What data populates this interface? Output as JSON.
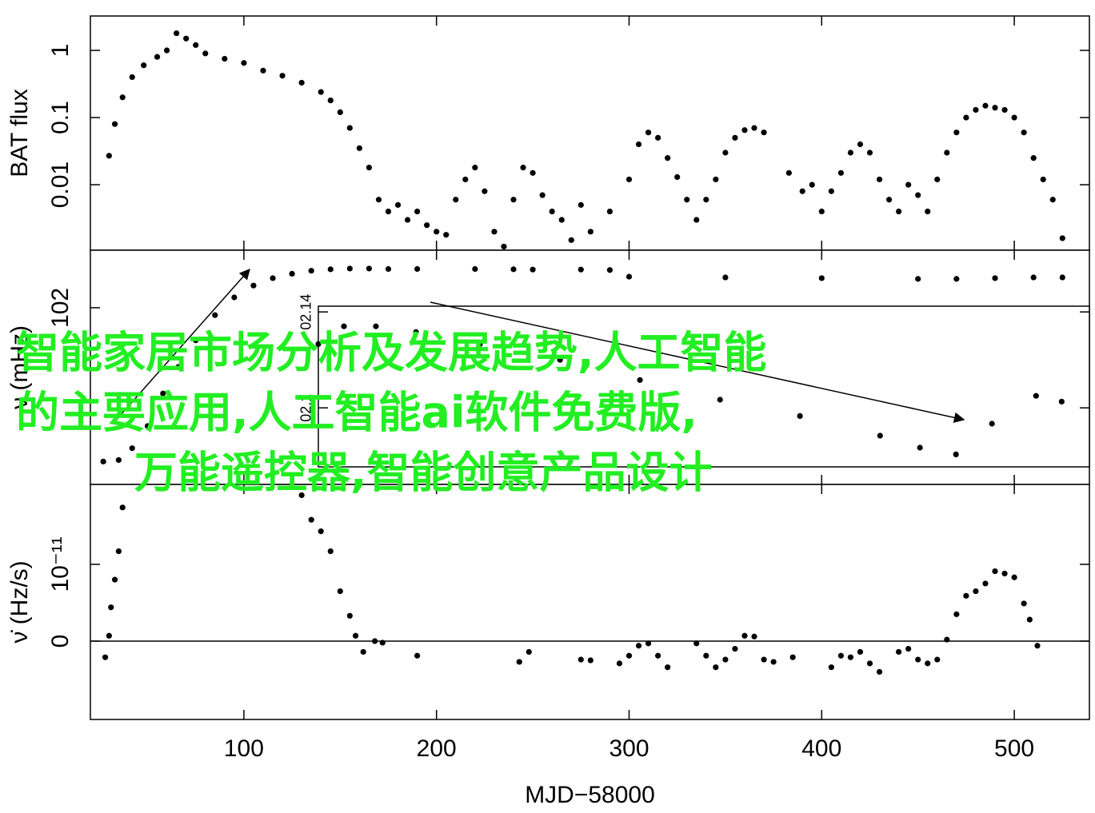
{
  "chart_data": [
    {
      "type": "scatter",
      "ylabel": "BAT flux",
      "log_y": true,
      "color": "#000000",
      "xlim": [
        20.3,
        539
      ],
      "xticks": [
        100,
        200,
        300,
        400,
        500
      ],
      "ylim": [
        0.00106,
        3.25
      ],
      "yticks": [
        0.01,
        0.1,
        1
      ],
      "x": [
        30,
        33,
        37,
        42,
        48,
        55,
        60,
        65,
        70,
        75,
        80,
        90,
        100,
        110,
        120,
        130,
        140,
        145,
        150,
        155,
        160,
        165,
        170,
        175,
        180,
        185,
        190,
        195,
        200,
        205,
        210,
        215,
        220,
        225,
        230,
        235,
        240,
        245,
        250,
        255,
        260,
        265,
        270,
        275,
        280,
        290,
        300,
        305,
        310,
        315,
        320,
        325,
        330,
        335,
        340,
        345,
        350,
        355,
        360,
        365,
        370,
        383,
        390,
        395,
        400,
        405,
        410,
        415,
        420,
        425,
        430,
        435,
        440,
        445,
        450,
        455,
        460,
        465,
        470,
        475,
        480,
        485,
        490,
        495,
        500,
        505,
        510,
        515,
        520,
        525
      ],
      "values": [
        0.027,
        0.08,
        0.2,
        0.4,
        0.6,
        0.8,
        1.0,
        1.8,
        1.5,
        1.2,
        0.9,
        0.75,
        0.65,
        0.5,
        0.42,
        0.33,
        0.24,
        0.18,
        0.12,
        0.07,
        0.035,
        0.018,
        0.006,
        0.004,
        0.005,
        0.003,
        0.004,
        0.0025,
        0.002,
        0.0018,
        0.006,
        0.012,
        0.018,
        0.008,
        0.002,
        0.0012,
        0.006,
        0.018,
        0.015,
        0.007,
        0.004,
        0.003,
        0.0015,
        0.005,
        0.002,
        0.004,
        0.012,
        0.04,
        0.06,
        0.05,
        0.025,
        0.013,
        0.006,
        0.003,
        0.006,
        0.012,
        0.03,
        0.05,
        0.065,
        0.07,
        0.06,
        0.015,
        0.008,
        0.01,
        0.004,
        0.008,
        0.015,
        0.03,
        0.04,
        0.03,
        0.012,
        0.006,
        0.004,
        0.01,
        0.007,
        0.004,
        0.012,
        0.03,
        0.06,
        0.1,
        0.13,
        0.15,
        0.14,
        0.13,
        0.1,
        0.06,
        0.025,
        0.012,
        0.006,
        0.0016
      ]
    },
    {
      "type": "scatter",
      "ylabel": "ν (mHz)",
      "color": "#000000",
      "xlim": [
        20.3,
        539
      ],
      "xticks": [
        100,
        200,
        300,
        400,
        500
      ],
      "ylim": [
        100.805,
        102.389
      ],
      "yticks": [
        102
      ],
      "x": [
        27,
        35,
        42,
        50,
        58,
        66,
        75,
        85,
        95,
        105,
        115,
        125,
        135,
        145,
        155,
        165,
        175,
        190,
        220,
        240,
        250,
        275,
        290,
        300,
        350,
        400,
        450,
        470,
        490,
        510,
        525
      ],
      "values": [
        100.96,
        100.97,
        101.05,
        101.2,
        101.42,
        101.6,
        101.78,
        101.95,
        102.07,
        102.15,
        102.2,
        102.23,
        102.25,
        102.26,
        102.265,
        102.265,
        102.262,
        102.262,
        102.262,
        102.26,
        102.258,
        102.258,
        102.255,
        102.21,
        102.205,
        102.2,
        102.195,
        102.195,
        102.2,
        102.205,
        102.205
      ]
    },
    {
      "type": "scatter",
      "color": "#000000",
      "xlim": [
        138.6,
        539
      ],
      "ylim": [
        102.1077,
        102.1412
      ],
      "yticks": [
        {
          "value": 102.14,
          "label": "02.14"
        },
        {
          "value": 102.12,
          "label": "02.1"
        }
      ],
      "x": [
        138.6,
        151.9,
        168.5,
        189.3,
        222.5,
        264.1,
        305.6,
        347.2,
        388.7,
        430.3,
        451,
        469.7,
        488.4,
        511.3,
        524.6
      ],
      "values": [
        102.1333,
        102.137,
        102.137,
        102.1358,
        102.1333,
        102.13,
        102.1258,
        102.1217,
        102.1183,
        102.1142,
        102.1117,
        102.1103,
        102.1167,
        102.1225,
        102.1213
      ]
    },
    {
      "type": "scatter",
      "ylabel": "ν̇ (Hz/s)",
      "xlabel": "MJD−58000",
      "color": "#000000",
      "zero_line": true,
      "xlim": [
        20.3,
        539
      ],
      "xticks": [
        100,
        200,
        300,
        400,
        500
      ],
      "ylim": [
        -1.02e-11,
        2.04e-11
      ],
      "yticks": [
        0,
        {
          "value": 1e-11,
          "label": "10⁻¹¹"
        }
      ],
      "x": [
        28,
        30,
        31,
        33,
        35,
        37,
        130,
        135,
        140,
        145,
        150,
        155,
        158,
        162,
        168,
        172,
        190,
        243,
        248,
        275,
        280,
        295,
        300,
        305,
        310,
        315,
        320,
        335,
        340,
        345,
        350,
        355,
        360,
        365,
        370,
        375,
        385,
        405,
        410,
        415,
        420,
        425,
        430,
        440,
        445,
        450,
        455,
        460,
        465,
        470,
        475,
        480,
        485,
        490,
        495,
        500,
        505,
        508,
        512
      ],
      "values": [
        -2.1e-12,
        7e-13,
        4.4e-12,
        8e-12,
        1.17e-11,
        1.74e-11,
        1.9e-11,
        1.58e-11,
        1.43e-11,
        1.17e-11,
        6.5e-12,
        3.3e-12,
        7e-13,
        -1.4e-12,
        0,
        -2e-13,
        -1.9e-12,
        -2.7e-12,
        -1.4e-12,
        -2.4e-12,
        -2.5e-12,
        -2.9e-12,
        -1.9e-12,
        -6e-13,
        -3e-13,
        -1.9e-12,
        -3.4e-12,
        -3e-13,
        -1.9e-12,
        -3.4e-12,
        -2.4e-12,
        -1e-12,
        7e-13,
        6e-13,
        -2.4e-12,
        -2.7e-12,
        -2.1e-12,
        -3.4e-12,
        -1.9e-12,
        -2.1e-12,
        -1.4e-12,
        -2.9e-12,
        -4e-12,
        -1.4e-12,
        -1e-12,
        -2.4e-12,
        -2.9e-12,
        -2.4e-12,
        2e-13,
        3.5e-12,
        5.9e-12,
        6.5e-12,
        7.5e-12,
        9.1e-12,
        8.8e-12,
        8.3e-12,
        4.9e-12,
        2.8e-12,
        -6e-13
      ]
    }
  ],
  "overlay_text": [
    "智能家居市场分析及发展趋势,人工智能",
    "的主要应用,人工智能ai软件免费版,",
    "万能遥控器,智能创意产品设计"
  ]
}
